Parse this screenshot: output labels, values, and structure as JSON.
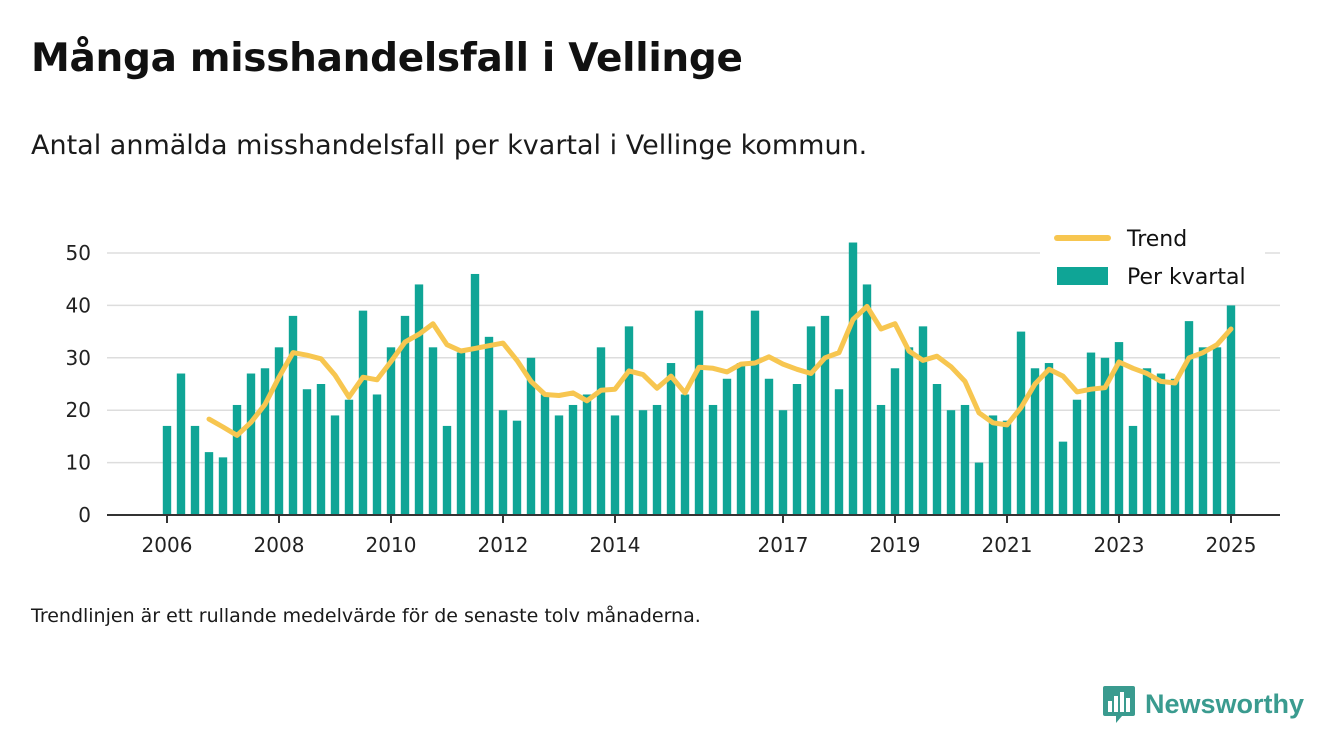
{
  "title": "Många misshandelsfall i Vellinge",
  "subtitle": "Antal anmälda misshandelsfall per kvartal i Vellinge kommun.",
  "footnote": "Trendlinjen är ett rullande medelvärde för de senaste tolv månaderna.",
  "brand": {
    "name": "Newsworthy",
    "icon": "newsworthy-logo-icon"
  },
  "colors": {
    "bars": "#0fa596",
    "trend": "#f7c650",
    "grid": "#dddddd",
    "axis": "#333333"
  },
  "chart_data": {
    "type": "bar",
    "x_start": "2006 Q1",
    "y_ticks": [
      0,
      10,
      20,
      30,
      40,
      50
    ],
    "ylim": [
      0,
      52
    ],
    "x_tick_labels": [
      "2006",
      "2008",
      "2010",
      "2012",
      "2014",
      "2017",
      "2019",
      "2021",
      "2023",
      "2025"
    ],
    "legend": [
      "Trend",
      "Per kvartal"
    ],
    "legend_position": "top-right",
    "grid": true,
    "series": [
      {
        "name": "Per kvartal",
        "type": "bar",
        "values": [
          17,
          27,
          17,
          12,
          11,
          21,
          27,
          28,
          32,
          38,
          24,
          25,
          19,
          22,
          39,
          23,
          32,
          38,
          44,
          32,
          17,
          31,
          46,
          34,
          20,
          18,
          30,
          23,
          19,
          21,
          23,
          32,
          19,
          36,
          20,
          21,
          29,
          23,
          39,
          21,
          26,
          29,
          39,
          26,
          20,
          25,
          36,
          38,
          24,
          52,
          44,
          21,
          28,
          32,
          36,
          25,
          20,
          21,
          10,
          19,
          18,
          35,
          28,
          29,
          14,
          22,
          31,
          30,
          33,
          17,
          28,
          27,
          26,
          37,
          32,
          32,
          40
        ]
      },
      {
        "name": "Trend",
        "type": "line",
        "values": [
          null,
          null,
          null,
          18.3,
          16.8,
          15.2,
          17.7,
          21.1,
          26.3,
          31,
          30.5,
          29.8,
          26.7,
          22.5,
          26.3,
          25.8,
          29.3,
          33,
          34.5,
          36.5,
          32.5,
          31.3,
          31.8,
          32.3,
          32.8,
          29.5,
          25.5,
          23,
          22.8,
          23.3,
          21.8,
          23.8,
          24,
          27.5,
          26.8,
          24.2,
          26.5,
          23.3,
          28.2,
          28,
          27.3,
          28.8,
          29,
          30.2,
          28.8,
          27.8,
          27,
          30,
          31,
          37.3,
          39.8,
          35.5,
          36.5,
          31.3,
          29.5,
          30.3,
          28.3,
          25.5,
          19.5,
          17.6,
          17.2,
          20.5,
          25,
          27.8,
          26.5,
          23.5,
          24,
          24.3,
          29.2,
          28,
          27,
          25.5,
          25.2,
          30,
          31,
          32.5,
          35.5
        ]
      }
    ]
  }
}
